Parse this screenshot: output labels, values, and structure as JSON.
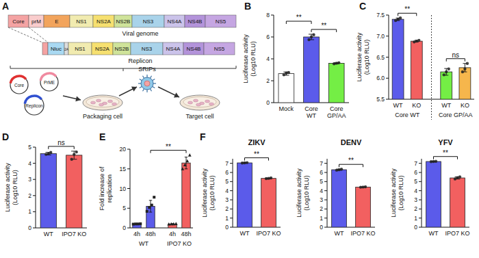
{
  "diagram": {
    "panel": "A",
    "genome": {
      "label": "Viral genome",
      "segments": [
        {
          "text": "Core",
          "color": "#f4a3a3"
        },
        {
          "text": "prM",
          "color": "#f9cccc"
        },
        {
          "text": "E",
          "color": "#f2a45c"
        },
        {
          "text": "NS1",
          "color": "#f1ebb0"
        },
        {
          "text": "NS2A",
          "color": "#f6e070"
        },
        {
          "text": "NS2B",
          "color": "#cfe39a"
        },
        {
          "text": "NS3",
          "color": "#a9d3ea"
        },
        {
          "text": "NS4A",
          "color": "#cbc3ea"
        },
        {
          "text": "NS4B",
          "color": "#b393da"
        },
        {
          "text": "NS5",
          "color": "#c5a6e2"
        }
      ]
    },
    "replicon": {
      "label": "Replicon",
      "segments": [
        {
          "color": "#f4a3a3"
        },
        {
          "text": "Nluc",
          "color": "#a9d9f2"
        },
        {
          "text": "2A",
          "color": "#dddddd"
        },
        {
          "text": "NS1",
          "color": "#f1ebb0"
        },
        {
          "text": "NS2A",
          "color": "#f6e070"
        },
        {
          "text": "NS2B",
          "color": "#cfe39a"
        },
        {
          "text": "NS3",
          "color": "#a9d3ea"
        },
        {
          "text": "NS4A",
          "color": "#cbc3ea"
        },
        {
          "text": "NS4B",
          "color": "#b393da"
        },
        {
          "text": "NS5",
          "color": "#c5a6e2"
        }
      ]
    },
    "plasmids": [
      {
        "text": "Core",
        "color": "#e03030"
      },
      {
        "text": "PrME",
        "color": "#f08aa0"
      },
      {
        "text": "Replicon",
        "color": "#3050d0"
      }
    ],
    "packaging_cell": "Packaging cell",
    "particle": "SRIPs",
    "target_cell": "Target cell"
  },
  "chart_data": [
    {
      "type": "bar",
      "panel": "B",
      "ylabel": [
        "Luciferase activity",
        "(Log10 RLU)"
      ],
      "categories": [
        "Mock",
        "Core WT",
        "Core GP/AA"
      ],
      "series": [
        {
          "colors": [
            "#ffffff",
            "#5b5bea",
            "#74ee45"
          ],
          "values": [
            2.65,
            6.0,
            3.6
          ],
          "errors": [
            0.15,
            0.25,
            0.05
          ],
          "points": [
            [
              2.55,
              2.7,
              2.75
            ],
            [
              5.75,
              6.0,
              6.2
            ],
            [
              3.55,
              3.6,
              3.65
            ]
          ]
        }
      ],
      "ylim": [
        0,
        8
      ],
      "yticks": [
        0,
        2,
        4,
        6,
        8
      ],
      "annotations": [
        {
          "text": "**",
          "between": [
            1,
            2
          ]
        },
        {
          "text": "**",
          "between": [
            0,
            1
          ]
        }
      ]
    },
    {
      "type": "bar",
      "panel": "C",
      "ylabel": [
        "Luciferase activity",
        "(Log10 RLU)"
      ],
      "categories": [
        "WT",
        "KO"
      ],
      "series": [
        {
          "name": "Core WT",
          "colors": [
            "#5b5bea",
            "#f26060"
          ],
          "values": [
            7.4,
            6.88
          ],
          "errors": [
            0.03,
            0.02
          ],
          "points": [
            [
              7.37,
              7.4,
              7.43
            ],
            [
              6.86,
              6.88,
              6.9
            ]
          ]
        },
        {
          "name": "Core GP/AA",
          "colors": [
            "#74ee45",
            "#f6b64c"
          ],
          "values": [
            6.15,
            6.25
          ],
          "errors": [
            0.08,
            0.1
          ],
          "points": [
            [
              6.08,
              6.15,
              6.22
            ],
            [
              6.15,
              6.22,
              6.35
            ]
          ]
        }
      ],
      "ylim": [
        5.5,
        7.5
      ],
      "yticks": [
        5.5,
        {
          "value": 6,
          "label": "6.0"
        },
        6.5,
        {
          "value": 7,
          "label": "7.0"
        },
        7.5
      ],
      "annotations": [
        {
          "text": "**",
          "between": [
            0,
            1
          ]
        },
        {
          "text": "ns",
          "between": [
            2,
            3
          ]
        }
      ]
    },
    {
      "type": "bar",
      "panel": "D",
      "ylabel": [
        "Luciferase activity",
        "(Log10 RLU)"
      ],
      "categories": [
        "WT",
        "IPO7 KO"
      ],
      "series": [
        {
          "colors": [
            "#5b5bea",
            "#f26060"
          ],
          "values": [
            4.6,
            4.5
          ],
          "errors": [
            0.08,
            0.25
          ],
          "points": [
            [
              4.55,
              4.58,
              4.67
            ],
            [
              4.25,
              4.55,
              4.7
            ]
          ]
        }
      ],
      "ylim": [
        0,
        5
      ],
      "yticks": [
        0,
        1,
        2,
        3,
        4,
        5
      ],
      "annotations": [
        {
          "text": "ns",
          "between": [
            0,
            1
          ]
        }
      ]
    },
    {
      "type": "bar",
      "panel": "E",
      "ylabel": [
        "Fold increase of",
        "replication"
      ],
      "categories": [
        "4h",
        "48h"
      ],
      "series": [
        {
          "name": "WT",
          "color": "#5b5bea",
          "marker": "square",
          "values": [
            1,
            5.5
          ],
          "errors": [
            0.1,
            1.5
          ],
          "points": [
            [
              0.95,
              1,
              1,
              1.05
            ],
            [
              4.2,
              5.2,
              5.8,
              7.8
            ]
          ]
        },
        {
          "name": "IPO7 KO",
          "color": "#f26060",
          "marker": "triangle",
          "values": [
            1,
            16.5
          ],
          "errors": [
            0.1,
            1.5
          ],
          "points": [
            [
              0.95,
              1,
              1,
              1.05
            ],
            [
              15,
              16,
              17,
              18.5
            ]
          ]
        }
      ],
      "ylim": [
        0,
        20
      ],
      "yticks": [
        0,
        5,
        10,
        15,
        20
      ],
      "annotations": [
        {
          "text": "**",
          "between": [
            1,
            3
          ]
        }
      ]
    },
    {
      "type": "bar",
      "panel": "F",
      "title": "ZIKV",
      "ylabel": [
        "Luciferase activity",
        "(Log10 RLU)"
      ],
      "categories": [
        "WT",
        "IPO7 KO"
      ],
      "series": [
        {
          "colors": [
            "#5b5bea",
            "#f26060"
          ],
          "values": [
            7.05,
            5.35
          ],
          "errors": [
            0.03,
            0.04
          ],
          "points": [
            [
              7.03,
              7.05,
              7.08
            ],
            [
              5.32,
              5.35,
              5.4
            ]
          ]
        }
      ],
      "ylim": [
        0,
        7.5
      ],
      "yticks": [
        0,
        1,
        2,
        3,
        4,
        5,
        6,
        7
      ],
      "annotations": [
        {
          "text": "**",
          "between": [
            0,
            1
          ]
        }
      ]
    },
    {
      "type": "bar",
      "title": "DENV",
      "ylabel": [
        "Luciferase activity",
        "(Log10 RLU)"
      ],
      "categories": [
        "WT",
        "IPO7 KO"
      ],
      "series": [
        {
          "colors": [
            "#5b5bea",
            "#f26060"
          ],
          "values": [
            6.3,
            4.4
          ],
          "errors": [
            0.06,
            0.02
          ],
          "points": [
            [
              6.25,
              6.3,
              6.36
            ],
            [
              4.38,
              4.4,
              4.42
            ]
          ]
        }
      ],
      "ylim": [
        0,
        7.5
      ],
      "yticks": [
        0,
        1,
        2,
        3,
        4,
        5,
        6,
        7
      ],
      "annotations": [
        {
          "text": "**",
          "between": [
            0,
            1
          ]
        }
      ]
    },
    {
      "type": "bar",
      "title": "YFV",
      "ylabel": [
        "Luciferase activity",
        "(Log10 RLU)"
      ],
      "categories": [
        "WT",
        "IPO7 KO"
      ],
      "series": [
        {
          "colors": [
            "#5b5bea",
            "#f26060"
          ],
          "values": [
            7.2,
            5.4
          ],
          "errors": [
            0.02,
            0.12
          ],
          "points": [
            [
              7.18,
              7.2,
              7.22
            ],
            [
              5.28,
              5.42,
              5.52
            ]
          ]
        }
      ],
      "ylim": [
        0,
        7.5
      ],
      "yticks": [
        0,
        1,
        2,
        3,
        4,
        5,
        6,
        7
      ],
      "annotations": [
        {
          "text": "**",
          "between": [
            0,
            1
          ]
        }
      ]
    }
  ]
}
